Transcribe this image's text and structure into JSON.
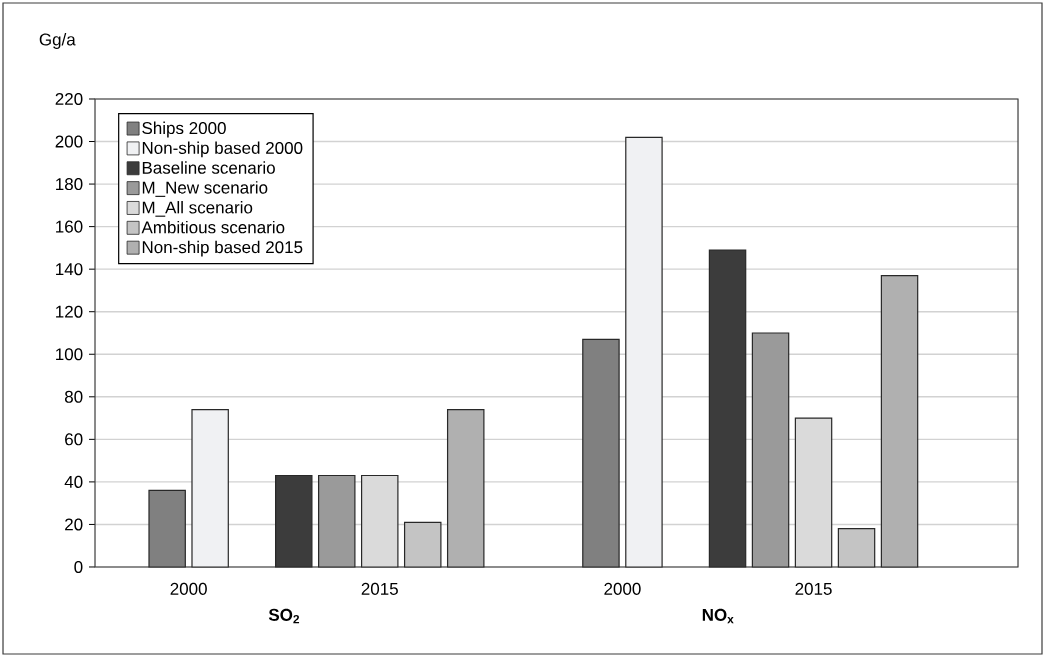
{
  "chart_data": {
    "type": "bar",
    "ylabel": "Gg/a",
    "categories": [
      "2000",
      "2015",
      "2000",
      "2015"
    ],
    "series": [
      {
        "name": "Ships 2000",
        "color": "#808080",
        "values": [
          36,
          null,
          107,
          null
        ]
      },
      {
        "name": "Non-ship based 2000",
        "color": "#f0f1f3",
        "values": [
          74,
          null,
          202,
          null
        ]
      },
      {
        "name": "Baseline scenario",
        "color": "#3c3c3c",
        "values": [
          null,
          43,
          null,
          149
        ]
      },
      {
        "name": "M_New scenario",
        "color": "#9a9a9a",
        "values": [
          null,
          43,
          null,
          110
        ]
      },
      {
        "name": "M_All scenario",
        "color": "#dadada",
        "values": [
          null,
          43,
          null,
          70
        ]
      },
      {
        "name": "Ambitious scenario",
        "color": "#c4c4c4",
        "values": [
          null,
          21,
          null,
          18
        ]
      },
      {
        "name": "Non-ship based 2015",
        "color": "#b0b0b0",
        "values": [
          null,
          74,
          null,
          137
        ]
      }
    ],
    "ylim": [
      0,
      220
    ],
    "yticks": [
      0,
      20,
      40,
      60,
      80,
      100,
      120,
      140,
      160,
      180,
      200,
      220
    ],
    "grid": "y",
    "legend": "top left",
    "annotations": [
      "SO$_{2}$",
      "NO$_{x}$"
    ]
  }
}
